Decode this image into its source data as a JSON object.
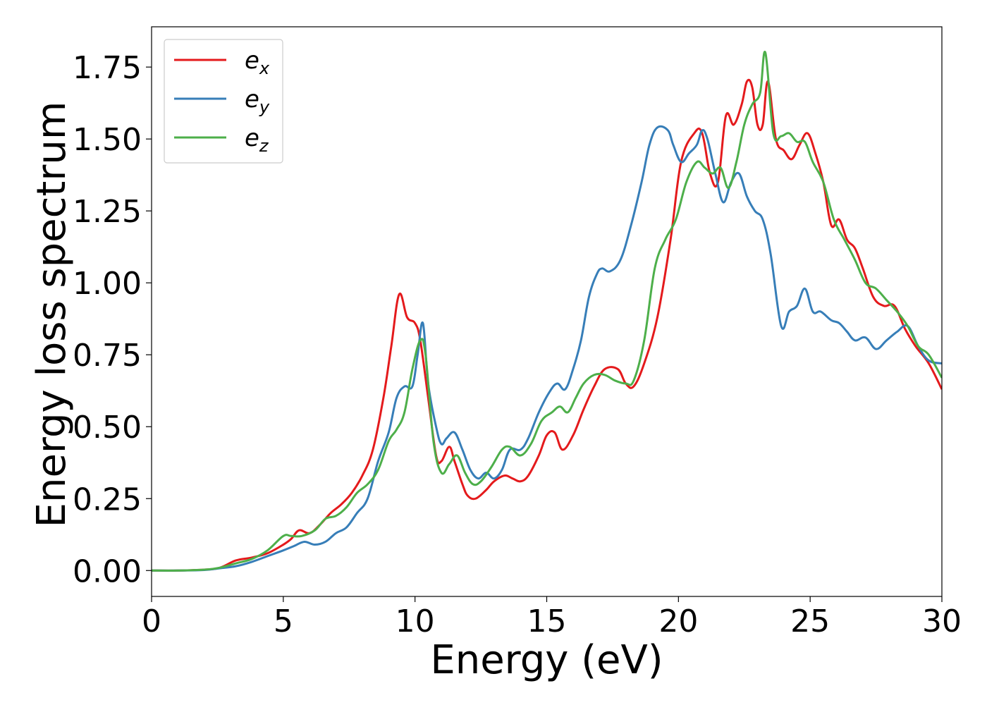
{
  "chart_data": {
    "type": "line",
    "title": "",
    "xlabel": "Energy (eV)",
    "ylabel": "Energy loss spectrum",
    "xlim": [
      0,
      30
    ],
    "ylim": [
      -0.09,
      1.89
    ],
    "xticks": [
      0,
      5,
      10,
      15,
      20,
      25,
      30
    ],
    "xtick_labels": [
      "0",
      "5",
      "10",
      "15",
      "20",
      "25",
      "30"
    ],
    "yticks": [
      0.0,
      0.25,
      0.5,
      0.75,
      1.0,
      1.25,
      1.5,
      1.75
    ],
    "ytick_labels": [
      "0.00",
      "0.25",
      "0.50",
      "0.75",
      "1.00",
      "1.25",
      "1.50",
      "1.75"
    ],
    "grid": false,
    "legend_position": "top-left",
    "series": [
      {
        "name": "e_x",
        "label_base": "e",
        "label_sub": "x",
        "color": "#e41a1c",
        "x": [
          0,
          1,
          2,
          2.6,
          3.2,
          3.8,
          4.4,
          5,
          5.3,
          5.6,
          6,
          6.4,
          6.8,
          7.2,
          7.6,
          8,
          8.4,
          8.8,
          9.1,
          9.4,
          9.7,
          10,
          10.2,
          10.5,
          10.8,
          11,
          11.3,
          11.5,
          11.8,
          12,
          12.3,
          12.7,
          13,
          13.4,
          13.7,
          14,
          14.3,
          14.7,
          15,
          15.3,
          15.6,
          16,
          16.4,
          16.8,
          17.2,
          17.7,
          18,
          18.3,
          18.7,
          19.2,
          19.7,
          20.1,
          20.6,
          20.9,
          21.2,
          21.5,
          21.8,
          22.1,
          22.4,
          22.6,
          22.8,
          23,
          23.2,
          23.4,
          23.7,
          24,
          24.3,
          24.6,
          24.9,
          25.2,
          25.5,
          25.8,
          26.1,
          26.4,
          26.7,
          27,
          27.4,
          27.8,
          28.2,
          28.6,
          29,
          29.5,
          30
        ],
        "y": [
          0,
          0,
          0.003,
          0.01,
          0.035,
          0.045,
          0.06,
          0.09,
          0.11,
          0.14,
          0.13,
          0.16,
          0.2,
          0.23,
          0.27,
          0.33,
          0.42,
          0.6,
          0.78,
          0.96,
          0.88,
          0.86,
          0.8,
          0.6,
          0.4,
          0.38,
          0.43,
          0.38,
          0.3,
          0.26,
          0.25,
          0.28,
          0.31,
          0.33,
          0.32,
          0.31,
          0.33,
          0.4,
          0.47,
          0.48,
          0.42,
          0.47,
          0.56,
          0.64,
          0.7,
          0.7,
          0.65,
          0.64,
          0.72,
          0.88,
          1.15,
          1.42,
          1.52,
          1.52,
          1.38,
          1.35,
          1.58,
          1.55,
          1.62,
          1.7,
          1.68,
          1.55,
          1.55,
          1.7,
          1.5,
          1.46,
          1.43,
          1.48,
          1.52,
          1.45,
          1.35,
          1.2,
          1.22,
          1.15,
          1.12,
          1.05,
          0.95,
          0.92,
          0.92,
          0.84,
          0.78,
          0.72,
          0.63
        ]
      },
      {
        "name": "e_y",
        "label_base": "e",
        "label_sub": "y",
        "color": "#377eb8",
        "x": [
          0,
          1,
          2,
          2.6,
          3.2,
          3.8,
          4.4,
          5,
          5.4,
          5.8,
          6.2,
          6.6,
          7,
          7.4,
          7.8,
          8.2,
          8.6,
          9,
          9.3,
          9.6,
          9.9,
          10.1,
          10.3,
          10.5,
          10.8,
          11,
          11.2,
          11.5,
          11.8,
          12.1,
          12.4,
          12.7,
          13,
          13.3,
          13.6,
          14,
          14.3,
          14.7,
          15.1,
          15.4,
          15.7,
          16,
          16.3,
          16.6,
          16.9,
          17.1,
          17.4,
          17.8,
          18.2,
          18.6,
          18.9,
          19.2,
          19.6,
          19.8,
          20.1,
          20.4,
          20.7,
          20.9,
          21.1,
          21.4,
          21.7,
          22,
          22.3,
          22.6,
          22.9,
          23.2,
          23.5,
          23.9,
          24.2,
          24.5,
          24.8,
          25.1,
          25.4,
          25.8,
          26.1,
          26.4,
          26.7,
          27.1,
          27.5,
          27.9,
          28.3,
          28.7,
          29.1,
          29.5,
          30
        ],
        "y": [
          0,
          0,
          0.002,
          0.008,
          0.015,
          0.03,
          0.05,
          0.07,
          0.085,
          0.1,
          0.09,
          0.1,
          0.13,
          0.15,
          0.2,
          0.25,
          0.38,
          0.48,
          0.6,
          0.64,
          0.64,
          0.75,
          0.86,
          0.65,
          0.5,
          0.44,
          0.46,
          0.48,
          0.42,
          0.35,
          0.32,
          0.34,
          0.32,
          0.35,
          0.42,
          0.42,
          0.46,
          0.55,
          0.62,
          0.65,
          0.63,
          0.7,
          0.8,
          0.95,
          1.03,
          1.05,
          1.04,
          1.08,
          1.2,
          1.35,
          1.48,
          1.54,
          1.53,
          1.48,
          1.42,
          1.45,
          1.48,
          1.53,
          1.5,
          1.38,
          1.28,
          1.35,
          1.38,
          1.3,
          1.25,
          1.22,
          1.1,
          0.85,
          0.9,
          0.92,
          0.98,
          0.9,
          0.9,
          0.87,
          0.86,
          0.83,
          0.8,
          0.81,
          0.77,
          0.8,
          0.83,
          0.85,
          0.78,
          0.73,
          0.72
        ]
      },
      {
        "name": "e_z",
        "label_base": "e",
        "label_sub": "z",
        "color": "#4daf4a",
        "x": [
          0,
          1,
          2,
          2.6,
          3.2,
          3.8,
          4.4,
          5,
          5.3,
          5.7,
          6.2,
          6.6,
          7,
          7.4,
          7.8,
          8.2,
          8.6,
          9,
          9.3,
          9.6,
          9.9,
          10.2,
          10.4,
          10.7,
          11,
          11.3,
          11.6,
          11.9,
          12.2,
          12.5,
          12.9,
          13.3,
          13.6,
          14,
          14.4,
          14.8,
          15.2,
          15.5,
          15.8,
          16.1,
          16.4,
          16.8,
          17.2,
          17.6,
          18,
          18.3,
          18.7,
          19.1,
          19.5,
          19.9,
          20.3,
          20.7,
          21,
          21.3,
          21.6,
          21.9,
          22.2,
          22.5,
          22.8,
          23.1,
          23.3,
          23.6,
          23.9,
          24.2,
          24.5,
          24.8,
          25.1,
          25.5,
          25.9,
          26.3,
          26.7,
          27.1,
          27.5,
          27.9,
          28.3,
          28.7,
          29.1,
          29.5,
          30
        ],
        "y": [
          0,
          0,
          0.003,
          0.01,
          0.025,
          0.04,
          0.07,
          0.12,
          0.12,
          0.12,
          0.14,
          0.18,
          0.19,
          0.22,
          0.27,
          0.3,
          0.35,
          0.45,
          0.49,
          0.55,
          0.7,
          0.8,
          0.75,
          0.45,
          0.34,
          0.37,
          0.4,
          0.34,
          0.3,
          0.31,
          0.36,
          0.42,
          0.43,
          0.4,
          0.44,
          0.52,
          0.55,
          0.57,
          0.55,
          0.6,
          0.65,
          0.68,
          0.68,
          0.66,
          0.65,
          0.66,
          0.8,
          1.05,
          1.15,
          1.22,
          1.35,
          1.42,
          1.4,
          1.38,
          1.4,
          1.33,
          1.42,
          1.55,
          1.62,
          1.66,
          1.8,
          1.52,
          1.51,
          1.52,
          1.49,
          1.49,
          1.42,
          1.35,
          1.22,
          1.15,
          1.08,
          1.0,
          0.98,
          0.94,
          0.9,
          0.85,
          0.78,
          0.75,
          0.67
        ]
      }
    ]
  }
}
